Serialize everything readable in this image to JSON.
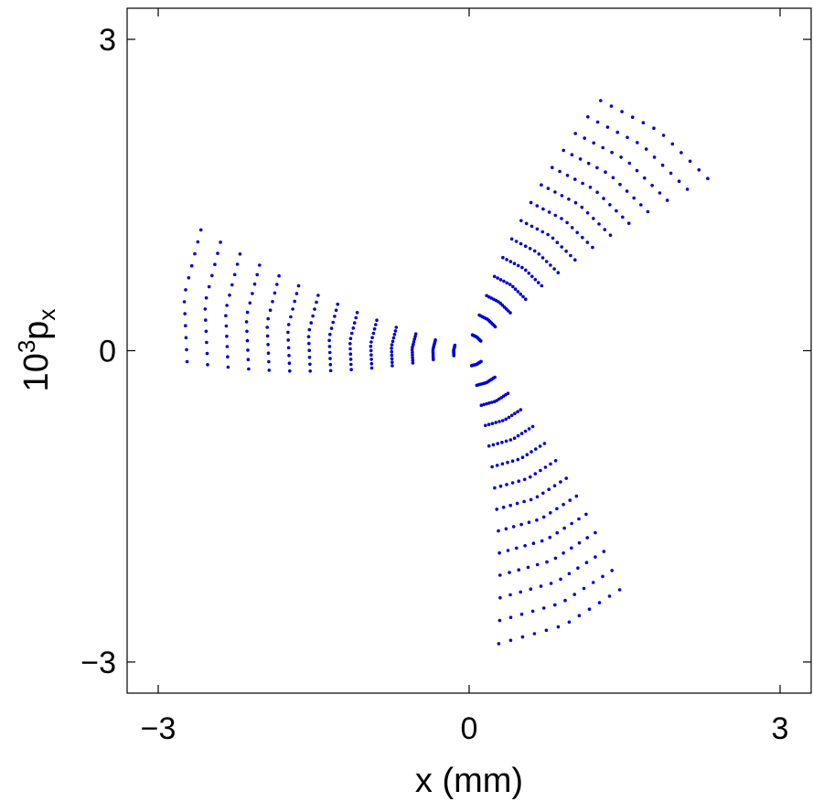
{
  "chart_data": {
    "type": "scatter",
    "title": "",
    "xlabel": "x (mm)",
    "ylabel": {
      "base": "10",
      "exponent": "3",
      "symbol": "p",
      "subscript": "x"
    },
    "xlim": [
      -3.3,
      3.3
    ],
    "ylim": [
      -3.3,
      3.3
    ],
    "xticks": [
      {
        "value": -3,
        "label": "−3"
      },
      {
        "value": 0,
        "label": "0"
      },
      {
        "value": 3,
        "label": "3"
      }
    ],
    "yticks": [
      {
        "value": -3,
        "label": "−3"
      },
      {
        "value": 0,
        "label": "0"
      },
      {
        "value": 3,
        "label": "3"
      }
    ],
    "grid": false,
    "legend": "none",
    "marker_color": "#0000cc",
    "series": [
      {
        "arms": [
          {
            "angle_deg": 180,
            "first_radius": 0.15,
            "count": 14,
            "step": 0.2,
            "curvature": -0.07,
            "band_start": 0.05,
            "band_growth": 0.045,
            "points_per_band": 12,
            "band_tilt": 0.35
          },
          {
            "angle_deg": 60,
            "first_radius": 0.15,
            "count": 14,
            "step": 0.2,
            "curvature": -0.07,
            "band_start": 0.05,
            "band_growth": 0.045,
            "points_per_band": 12,
            "band_tilt": 0.35
          },
          {
            "angle_deg": -60,
            "first_radius": 0.15,
            "count": 14,
            "step": 0.2,
            "curvature": -0.07,
            "band_start": 0.05,
            "band_growth": 0.045,
            "points_per_band": 12,
            "band_tilt": 0.35
          }
        ]
      }
    ]
  }
}
